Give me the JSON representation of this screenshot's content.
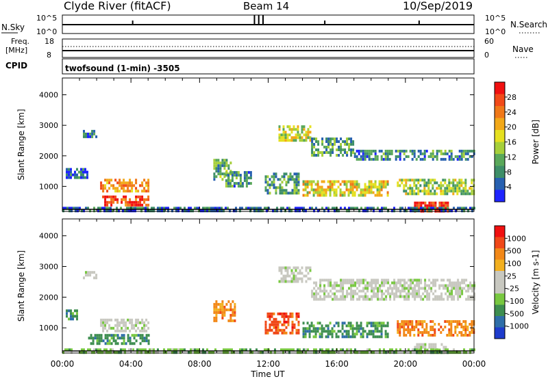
{
  "header": {
    "station": "Clyde River (fitACF)",
    "beam": "Beam 14",
    "date": "10/Sep/2019"
  },
  "nsky_panel": {
    "left_label": "N.Sky",
    "right_label": "N.Search",
    "tick_top": "10^5",
    "tick_bottom": "10^0"
  },
  "freq_panel": {
    "left_label_1": "Freq.",
    "left_label_2": "[MHz]",
    "left_tick_top": "18",
    "left_tick_bottom": "8",
    "right_tick_top": "60",
    "right_tick_bottom": "0",
    "right_label": "Nave"
  },
  "cpid_panel": {
    "label": "CPID",
    "value": "twofsound (1-min) -3505"
  },
  "x_axis": {
    "label": "Time UT",
    "ticks": [
      "00:00",
      "04:00",
      "08:00",
      "12:00",
      "16:00",
      "20:00",
      "00:00"
    ]
  },
  "chart_data": [
    {
      "type": "heatmap",
      "name": "power",
      "ylabel": "Slant Range [km]",
      "y_ticks": [
        1000,
        2000,
        3000,
        4000
      ],
      "ylim": [
        180,
        4550
      ],
      "xlim": [
        0,
        24
      ],
      "colorbar": {
        "label": "Power [dB]",
        "tick_labels": [
          "4",
          "8",
          "12",
          "16",
          "20",
          "24",
          "28"
        ],
        "tick_values": [
          4,
          8,
          12,
          16,
          20,
          24,
          28
        ],
        "range": [
          0,
          32
        ],
        "colors": [
          "#1e24ff",
          "#2760b0",
          "#3e8e68",
          "#5aa85a",
          "#a6cf3a",
          "#e6e020",
          "#f2a818",
          "#f07818",
          "#f24a18",
          "#f01010"
        ]
      },
      "regions": [
        {
          "t": [
            1.2,
            2.0
          ],
          "r": [
            2600,
            2850
          ],
          "v": 6
        },
        {
          "t": [
            0.2,
            1.5
          ],
          "r": [
            1250,
            1600
          ],
          "v": 5
        },
        {
          "t": [
            2.2,
            5.0
          ],
          "r": [
            850,
            1250
          ],
          "v": 22
        },
        {
          "t": [
            2.2,
            5.0
          ],
          "r": [
            400,
            700
          ],
          "v": 28
        },
        {
          "t": [
            8.8,
            9.8
          ],
          "r": [
            1200,
            1900
          ],
          "v": 12
        },
        {
          "t": [
            9.5,
            11.0
          ],
          "r": [
            1000,
            1500
          ],
          "v": 8
        },
        {
          "t": [
            11.8,
            13.8
          ],
          "r": [
            750,
            1450
          ],
          "v": 10
        },
        {
          "t": [
            12.6,
            14.5
          ],
          "r": [
            2500,
            3000
          ],
          "v": 16
        },
        {
          "t": [
            14.5,
            17.0
          ],
          "r": [
            2000,
            2600
          ],
          "v": 10
        },
        {
          "t": [
            17.0,
            24.0
          ],
          "r": [
            1900,
            2200
          ],
          "v": 8
        },
        {
          "t": [
            14.0,
            19.0
          ],
          "r": [
            700,
            1200
          ],
          "v": 18
        },
        {
          "t": [
            19.5,
            24.0
          ],
          "r": [
            800,
            1250
          ],
          "v": 14
        },
        {
          "t": [
            20.5,
            22.5
          ],
          "r": [
            200,
            500
          ],
          "v": 30
        },
        {
          "t": [
            0.0,
            24.0
          ],
          "r": [
            200,
            330
          ],
          "v": 6
        }
      ]
    },
    {
      "type": "heatmap",
      "name": "velocity",
      "ylabel": "Slant Range [km]",
      "y_ticks": [
        1000,
        2000,
        3000,
        4000
      ],
      "ylim": [
        180,
        4550
      ],
      "xlim": [
        0,
        24
      ],
      "colorbar": {
        "label": "Velocity [m s-1]",
        "tick_labels": [
          "1000",
          "500",
          "100",
          "25",
          "-25",
          "-100",
          "-500",
          "-1000"
        ],
        "colors": [
          "#1e3ccc",
          "#2f6ea8",
          "#3e8e50",
          "#78c840",
          "#c8c8c0",
          "#c8c8c0",
          "#f2b020",
          "#f28818",
          "#f04818",
          "#f01010"
        ]
      },
      "regions": [
        {
          "t": [
            1.2,
            2.0
          ],
          "r": [
            2600,
            2850
          ],
          "c": 4
        },
        {
          "t": [
            0.2,
            0.8
          ],
          "r": [
            1250,
            1600
          ],
          "c": 2
        },
        {
          "t": [
            2.2,
            5.0
          ],
          "r": [
            900,
            1300
          ],
          "c": 4
        },
        {
          "t": [
            1.5,
            5.0
          ],
          "r": [
            450,
            800
          ],
          "c": 2
        },
        {
          "t": [
            8.8,
            10.0
          ],
          "r": [
            1200,
            1900
          ],
          "c": 7
        },
        {
          "t": [
            11.8,
            13.8
          ],
          "r": [
            800,
            1500
          ],
          "c": 8
        },
        {
          "t": [
            12.6,
            14.5
          ],
          "r": [
            2500,
            3000
          ],
          "c": 4
        },
        {
          "t": [
            14.5,
            24.0
          ],
          "r": [
            1900,
            2600
          ],
          "c": 4
        },
        {
          "t": [
            14.0,
            19.0
          ],
          "r": [
            700,
            1200
          ],
          "c": 2
        },
        {
          "t": [
            19.5,
            24.0
          ],
          "r": [
            800,
            1250
          ],
          "c": 7
        },
        {
          "t": [
            20.5,
            22.5
          ],
          "r": [
            200,
            500
          ],
          "c": 4
        },
        {
          "t": [
            0.0,
            24.0
          ],
          "r": [
            200,
            330
          ],
          "c": 3
        }
      ]
    }
  ]
}
